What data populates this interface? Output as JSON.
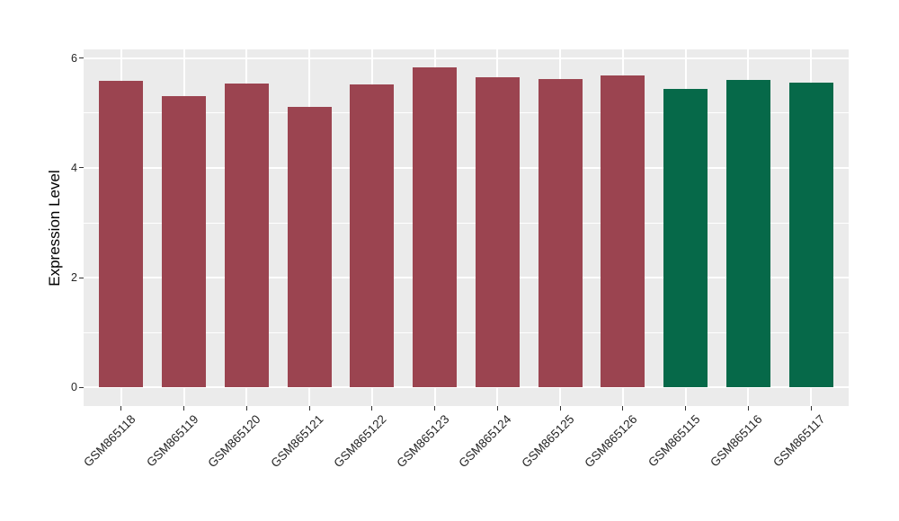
{
  "chart_data": {
    "type": "bar",
    "title": "",
    "ylabel": "Expression Level",
    "xlabel": "",
    "categories": [
      "GSM865118",
      "GSM865119",
      "GSM865120",
      "GSM865121",
      "GSM865122",
      "GSM865123",
      "GSM865124",
      "GSM865125",
      "GSM865126",
      "GSM865115",
      "GSM865116",
      "GSM865117"
    ],
    "values": [
      5.59,
      5.31,
      5.54,
      5.11,
      5.52,
      5.84,
      5.66,
      5.62,
      5.69,
      5.44,
      5.61,
      5.56
    ],
    "groups": [
      "maroon",
      "maroon",
      "maroon",
      "maroon",
      "maroon",
      "maroon",
      "maroon",
      "maroon",
      "maroon",
      "green",
      "green",
      "green"
    ],
    "colors": {
      "maroon": "#9B4450",
      "green": "#066949"
    },
    "y_major_ticks": [
      0,
      2,
      4,
      6
    ],
    "y_tick_labels": [
      "0",
      "2",
      "4",
      "6"
    ],
    "y_minor_ticks": [
      1,
      3,
      5
    ],
    "ylim": [
      -0.34,
      6.16
    ],
    "bar_width_frac": 0.7,
    "x_expand": 0.6,
    "panel_bg": "#EBEBEB",
    "grid_color": "#FFFFFF",
    "tick_color": "#333333",
    "axis_text_color": "#262626",
    "legend_position": "none",
    "grid": "on"
  }
}
